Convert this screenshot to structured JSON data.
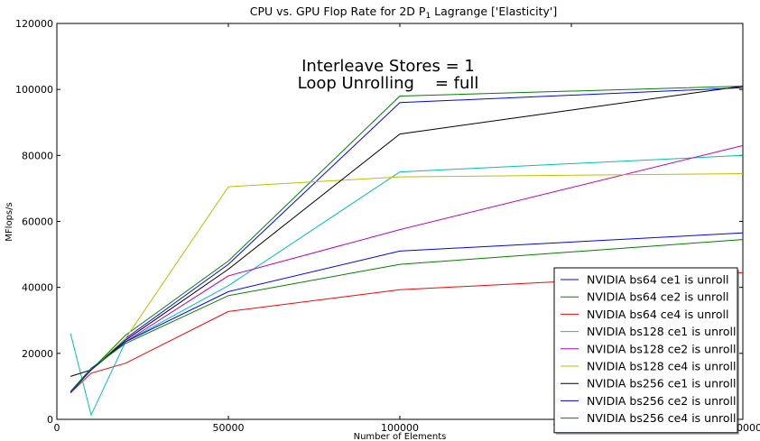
{
  "chart_data": {
    "type": "line",
    "title": "CPU vs. GPU Flop Rate for 2D P",
    "title_subscript": "1",
    "title_suffix": " Lagrange ['Elasticity']",
    "xlabel": "Number of Elements",
    "ylabel": "MFlops/s",
    "xlim": [
      0,
      200000
    ],
    "ylim": [
      0,
      120000
    ],
    "x_ticks": [
      0,
      50000,
      100000,
      150000,
      200000
    ],
    "y_ticks": [
      0,
      20000,
      40000,
      60000,
      80000,
      100000,
      120000
    ],
    "grid": false,
    "legend_position": "lower-right",
    "annotations": [
      "Interleave Stores = 1",
      "Loop Unrolling    = full"
    ],
    "x": [
      4000,
      10000,
      20000,
      50000,
      100000,
      200000
    ],
    "series": [
      {
        "name": "NVIDIA bs64 ce1 is unroll",
        "color": "#0000ff",
        "values": [
          8000,
          15000,
          24500,
          47000,
          96000,
          100500
        ]
      },
      {
        "name": "NVIDIA bs64 ce2 is unroll",
        "color": "#008000",
        "values": [
          8200,
          15000,
          25500,
          48000,
          98000,
          101000
        ]
      },
      {
        "name": "NVIDIA bs64 ce4 is unroll",
        "color": "#ff0000",
        "values": [
          8000,
          14000,
          17000,
          32700,
          39300,
          44500
        ]
      },
      {
        "name": "NVIDIA bs128 ce1 is unroll",
        "color": "#00bfbf",
        "values": [
          26000,
          1300,
          23500,
          40500,
          75000,
          80000
        ]
      },
      {
        "name": "NVIDIA bs128 ce2 is unroll",
        "color": "#bf00bf",
        "values": [
          8300,
          15000,
          23500,
          43500,
          57500,
          83000
        ]
      },
      {
        "name": "NVIDIA bs128 ce4 is unroll",
        "color": "#bfbf00",
        "values": [
          8300,
          15000,
          24500,
          70500,
          73500,
          74500
        ]
      },
      {
        "name": "NVIDIA bs256 ce1 is unroll",
        "color": "#000000",
        "values": [
          13000,
          15000,
          24000,
          45500,
          86500,
          101000
        ]
      },
      {
        "name": "NVIDIA bs256 ce2 is unroll",
        "color": "#0000ff",
        "values": [
          8300,
          15000,
          23500,
          38700,
          51000,
          56500
        ]
      },
      {
        "name": "NVIDIA bs256 ce4 is unroll",
        "color": "#008000",
        "values": [
          8500,
          15500,
          23000,
          37500,
          47000,
          54500
        ]
      }
    ]
  }
}
